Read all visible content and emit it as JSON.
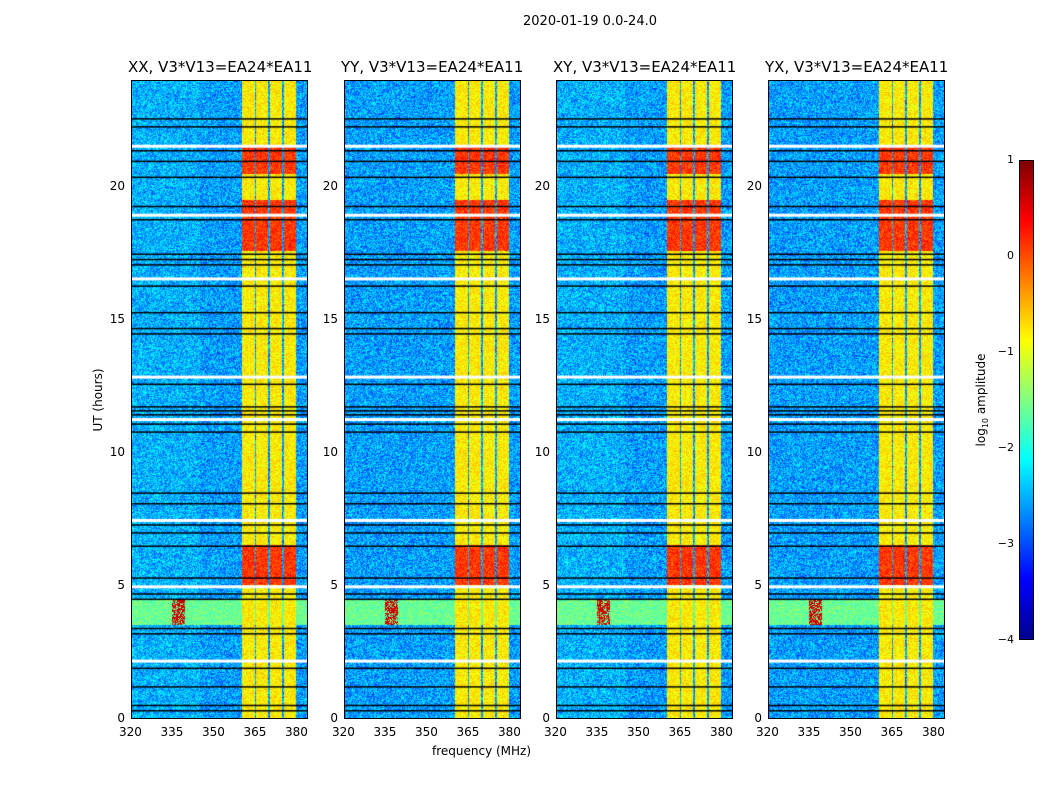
{
  "chart_data": {
    "type": "heatmap",
    "title": "2020-01-19 0.0-24.0",
    "xlabel": "frequency (MHz)",
    "ylabel": "UT (hours)",
    "xlim": [
      320,
      384
    ],
    "ylim": [
      0,
      24
    ],
    "xticks": [
      "320",
      "335",
      "350",
      "365",
      "380"
    ],
    "xtick_values": [
      320,
      335,
      350,
      365,
      380
    ],
    "yticks": [
      "0",
      "5",
      "10",
      "15",
      "20"
    ],
    "ytick_values": [
      0,
      5,
      10,
      15,
      20
    ],
    "panels": [
      {
        "title": "XX, V3*V13=EA24*EA11"
      },
      {
        "title": "YY, V3*V13=EA24*EA11"
      },
      {
        "title": "XY, V3*V13=EA24*EA11"
      },
      {
        "title": "YX, V3*V13=EA24*EA11"
      }
    ],
    "background_log_amplitude": -2.6,
    "bright_channels_MHz": [
      [
        360.4,
        364.8
      ],
      [
        365.5,
        369.8
      ],
      [
        370.5,
        374.9
      ],
      [
        375.6,
        380.0
      ]
    ],
    "bright_log_amplitude": -0.8,
    "hot_intervals_hours": [
      [
        5.0,
        6.5
      ],
      [
        17.6,
        19.5
      ],
      [
        20.5,
        21.5
      ]
    ],
    "rfi_burst_hours": [
      3.5,
      4.5
    ],
    "flagged_hours": [
      0.3,
      0.5,
      1.2,
      1.9,
      2.2,
      3.2,
      3.4,
      4.5,
      4.7,
      5.0,
      5.3,
      6.5,
      7.0,
      7.3,
      7.5,
      8.1,
      8.5,
      10.8,
      11.1,
      11.3,
      11.45,
      11.6,
      11.75,
      12.6,
      12.9,
      14.5,
      14.7,
      15.3,
      16.3,
      16.6,
      17.1,
      17.3,
      17.5,
      18.8,
      19.0,
      19.3,
      20.4,
      21.0,
      21.4,
      21.6,
      22.3,
      22.6
    ],
    "colorbar": {
      "label": "log10 amplitude",
      "range": [
        -4,
        1
      ],
      "ticks": [
        "1",
        "0",
        "−1",
        "−2",
        "−3",
        "−4"
      ],
      "tick_values": [
        1,
        0,
        -1,
        -2,
        -3,
        -4
      ]
    }
  }
}
